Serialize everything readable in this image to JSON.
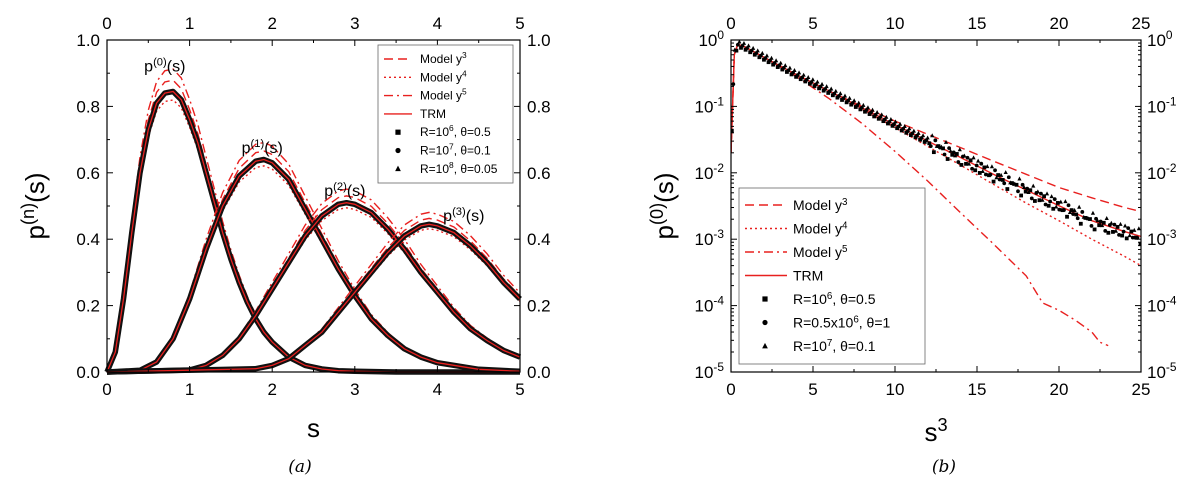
{
  "figure": {
    "caption_a": "(a)",
    "caption_b": "(b)"
  },
  "chart_data": [
    {
      "type": "line",
      "panel": "a",
      "xlabel": "s",
      "ylabel": "p(n)(s)",
      "ylabel_main": "p",
      "ylabel_sup": "(n)",
      "ylabel_tail": "(s)",
      "xlim": [
        0,
        5
      ],
      "ylim": [
        0,
        1.0
      ],
      "x_ticks": [
        "0",
        "1",
        "2",
        "3",
        "4",
        "5"
      ],
      "y_ticks": [
        "0.0",
        "0.2",
        "0.4",
        "0.6",
        "0.8",
        "1.0"
      ],
      "mirror_axes": true,
      "legend_position": "top-right",
      "legend": [
        {
          "label": "Model y",
          "sup": "3",
          "style": "dash",
          "color": "#e8201f"
        },
        {
          "label": "Model y",
          "sup": "4",
          "style": "dot",
          "color": "#e8201f"
        },
        {
          "label": "Model y",
          "sup": "5",
          "style": "dashdot",
          "color": "#e8201f"
        },
        {
          "label": "TRM",
          "sup": "",
          "style": "solid",
          "color": "#e8201f"
        },
        {
          "label": "R=10",
          "sup": "6",
          "tail": ", θ=0.5",
          "style": "square",
          "color": "#000000"
        },
        {
          "label": "R=10",
          "sup": "7",
          "tail": ", θ=0.1",
          "style": "circle",
          "color": "#000000"
        },
        {
          "label": "R=10",
          "sup": "8",
          "tail": ", θ=0.05",
          "style": "triangle",
          "color": "#000000"
        }
      ],
      "curve_labels": [
        {
          "main": "p",
          "sup": "(0)",
          "tail": "(s)",
          "x": 0.45,
          "y": 0.905
        },
        {
          "main": "p",
          "sup": "(1)",
          "tail": "(s)",
          "x": 1.63,
          "y": 0.66
        },
        {
          "main": "p",
          "sup": "(2)",
          "tail": "(s)",
          "x": 2.63,
          "y": 0.53
        },
        {
          "main": "p",
          "sup": "(3)",
          "tail": "(s)",
          "x": 4.07,
          "y": 0.455
        }
      ],
      "series": [
        {
          "name": "p(0)(s)",
          "x": [
            0,
            0.1,
            0.2,
            0.3,
            0.4,
            0.5,
            0.6,
            0.7,
            0.8,
            0.9,
            1.0,
            1.1,
            1.2,
            1.3,
            1.4,
            1.5,
            1.6,
            1.7,
            1.8,
            1.9,
            2.0,
            2.2,
            2.4,
            2.6,
            2.8,
            3.0,
            3.5,
            4.0,
            4.5,
            5.0
          ],
          "y": [
            0,
            0.06,
            0.22,
            0.42,
            0.6,
            0.73,
            0.81,
            0.84,
            0.845,
            0.82,
            0.76,
            0.69,
            0.6,
            0.51,
            0.42,
            0.34,
            0.27,
            0.21,
            0.16,
            0.12,
            0.09,
            0.045,
            0.02,
            0.009,
            0.004,
            0.002,
            0,
            0,
            0,
            0
          ]
        },
        {
          "name": "p(1)(s)",
          "x": [
            0,
            0.4,
            0.6,
            0.8,
            1.0,
            1.2,
            1.4,
            1.6,
            1.8,
            1.9,
            2.0,
            2.2,
            2.4,
            2.6,
            2.8,
            3.0,
            3.2,
            3.4,
            3.6,
            3.8,
            4.0,
            4.5,
            5.0
          ],
          "y": [
            0,
            0.005,
            0.03,
            0.1,
            0.22,
            0.37,
            0.5,
            0.59,
            0.635,
            0.64,
            0.63,
            0.58,
            0.49,
            0.4,
            0.31,
            0.23,
            0.16,
            0.11,
            0.07,
            0.045,
            0.028,
            0.008,
            0.002
          ]
        },
        {
          "name": "p(2)(s)",
          "x": [
            0,
            1.0,
            1.2,
            1.4,
            1.6,
            1.8,
            2.0,
            2.2,
            2.4,
            2.6,
            2.8,
            2.9,
            3.0,
            3.2,
            3.4,
            3.6,
            3.8,
            4.0,
            4.2,
            4.4,
            4.6,
            4.8,
            5.0
          ],
          "y": [
            0,
            0.006,
            0.02,
            0.05,
            0.1,
            0.17,
            0.25,
            0.33,
            0.41,
            0.47,
            0.505,
            0.51,
            0.505,
            0.48,
            0.43,
            0.37,
            0.3,
            0.24,
            0.18,
            0.13,
            0.095,
            0.065,
            0.045
          ]
        },
        {
          "name": "p(3)(s)",
          "x": [
            0,
            1.8,
            2.0,
            2.2,
            2.4,
            2.6,
            2.8,
            3.0,
            3.2,
            3.4,
            3.6,
            3.8,
            3.9,
            4.0,
            4.2,
            4.4,
            4.6,
            4.8,
            5.0
          ],
          "y": [
            0,
            0.01,
            0.02,
            0.04,
            0.08,
            0.12,
            0.18,
            0.24,
            0.3,
            0.36,
            0.41,
            0.44,
            0.445,
            0.44,
            0.42,
            0.38,
            0.33,
            0.27,
            0.22
          ]
        }
      ]
    },
    {
      "type": "line",
      "panel": "b",
      "xlabel": "s3",
      "xlabel_main": "s",
      "xlabel_sup": "3",
      "ylabel": "p(0)(s)",
      "ylabel_main": "p",
      "ylabel_sup": "(0)",
      "ylabel_tail": "(s)",
      "xlim": [
        0,
        25
      ],
      "ylim": [
        1e-05,
        1
      ],
      "y_scale": "log",
      "x_ticks": [
        "0",
        "5",
        "10",
        "15",
        "20",
        "25"
      ],
      "y_ticks": [
        {
          "base": "10",
          "exp": "0"
        },
        {
          "base": "10",
          "exp": "-1"
        },
        {
          "base": "10",
          "exp": "-2"
        },
        {
          "base": "10",
          "exp": "-3"
        },
        {
          "base": "10",
          "exp": "-4"
        },
        {
          "base": "10",
          "exp": "-5"
        }
      ],
      "mirror_axes": true,
      "legend_position": "bottom-left",
      "legend": [
        {
          "label": "Model y",
          "sup": "3",
          "style": "dash",
          "color": "#e8201f"
        },
        {
          "label": "Model y",
          "sup": "4",
          "style": "dot",
          "color": "#e8201f"
        },
        {
          "label": "Model y",
          "sup": "5",
          "style": "dashdot",
          "color": "#e8201f"
        },
        {
          "label": "TRM",
          "sup": "",
          "style": "solid",
          "color": "#e8201f"
        },
        {
          "label": "R=10",
          "sup": "6",
          "tail": ", θ=0.5",
          "style": "square",
          "color": "#000000"
        },
        {
          "label": "R=0.5x10",
          "sup": "6",
          "tail": ", θ=1",
          "style": "circle",
          "color": "#000000"
        },
        {
          "label": "R=10",
          "sup": "7",
          "tail": ", θ=0.1",
          "style": "triangle",
          "color": "#000000"
        }
      ],
      "series": [
        {
          "name": "Model y3",
          "x": [
            0,
            0.2,
            0.4,
            0.7,
            1,
            2,
            4,
            6,
            8,
            10,
            12,
            14,
            16,
            18,
            20,
            22,
            24,
            25
          ],
          "y": [
            0.02,
            0.6,
            0.85,
            0.82,
            0.75,
            0.55,
            0.3,
            0.17,
            0.1,
            0.06,
            0.038,
            0.024,
            0.015,
            0.0095,
            0.006,
            0.0042,
            0.003,
            0.0026
          ]
        },
        {
          "name": "Model y4",
          "x": [
            0,
            0.2,
            0.4,
            0.7,
            1,
            2,
            4,
            6,
            8,
            10,
            12,
            14,
            16,
            18,
            20,
            22,
            24,
            25
          ],
          "y": [
            0.02,
            0.6,
            0.85,
            0.82,
            0.75,
            0.55,
            0.3,
            0.16,
            0.09,
            0.048,
            0.025,
            0.013,
            0.0067,
            0.0035,
            0.0019,
            0.001,
            0.00055,
            0.0004
          ]
        },
        {
          "name": "Model y5",
          "x": [
            0,
            0.2,
            0.4,
            0.7,
            1,
            2,
            4,
            6,
            8,
            10,
            12,
            14,
            16,
            18,
            19,
            20,
            21,
            22,
            22.5,
            23
          ],
          "y": [
            0.02,
            0.6,
            0.85,
            0.82,
            0.75,
            0.55,
            0.28,
            0.13,
            0.055,
            0.021,
            0.0075,
            0.0025,
            0.00085,
            0.00028,
            0.00011,
            8.5e-05,
            6e-05,
            4e-05,
            2.8e-05,
            2.5e-05
          ]
        },
        {
          "name": "TRM",
          "x": [
            0,
            0.2,
            0.4,
            0.7,
            1,
            2,
            4,
            6,
            8,
            10,
            12,
            14,
            16,
            18,
            20,
            22,
            24,
            25
          ],
          "y": [
            0.02,
            0.6,
            0.85,
            0.82,
            0.75,
            0.55,
            0.3,
            0.17,
            0.095,
            0.053,
            0.03,
            0.017,
            0.0095,
            0.0055,
            0.0032,
            0.0019,
            0.0013,
            0.0011
          ]
        }
      ]
    }
  ]
}
